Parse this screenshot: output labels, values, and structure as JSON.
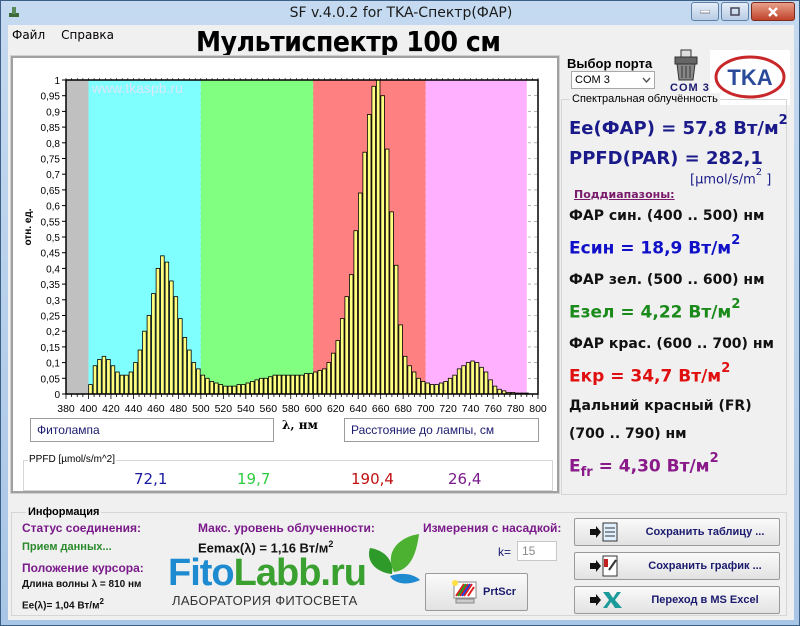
{
  "window": {
    "title": "SF v.4.0.2 for TKA-Спектр(ФАР)",
    "controls": {
      "minimize": "minimize",
      "maximize": "maximize",
      "close": "close"
    }
  },
  "menu": {
    "items": [
      {
        "label": "Файл"
      },
      {
        "label": "Справка"
      }
    ]
  },
  "header": {
    "title": "Мультиспектр 100 см"
  },
  "port": {
    "label": "Выбор порта",
    "selected": "COM 3",
    "status": "COM  3"
  },
  "chart": {
    "watermark": "www.tkaspb.ru",
    "ylabel": "отн. ед.",
    "xlabel": "λ, нм",
    "lamp_field": "Фитолампа",
    "distance_field": "Расстояние до лампы,  см",
    "ppfd_group_label": "PPFD [µmol/s/m^2]",
    "ppfd_values": [
      {
        "value": "72,1",
        "color": "#1a1aa0"
      },
      {
        "value": "19,7",
        "color": "#2ecc40"
      },
      {
        "value": "190,4",
        "color": "#c01010"
      },
      {
        "value": "26,4",
        "color": "#7a1a8a"
      }
    ]
  },
  "chart_data": {
    "type": "bar",
    "title": "Мультиспектр 100 см",
    "xlabel": "λ, нм",
    "ylabel": "отн. ед.",
    "xlim": [
      380,
      800
    ],
    "ylim": [
      0,
      1
    ],
    "x_ticks": [
      380,
      400,
      420,
      440,
      460,
      480,
      500,
      520,
      540,
      560,
      580,
      600,
      620,
      640,
      660,
      680,
      700,
      720,
      740,
      760,
      780,
      800
    ],
    "y_ticks": [
      "0",
      "0,05",
      "0,1",
      "0,15",
      "0,2",
      "0,25",
      "0,3",
      "0,35",
      "0,4",
      "0,45",
      "0,5",
      "0,55",
      "0,6",
      "0,65",
      "0,7",
      "0,75",
      "0,8",
      "0,85",
      "0,9",
      "0,95",
      "1"
    ],
    "bands": [
      {
        "name": "pre",
        "from": 380,
        "to": 400,
        "color": "#c0c0c0"
      },
      {
        "name": "blue",
        "from": 400,
        "to": 500,
        "color": "#80ffff"
      },
      {
        "name": "green",
        "from": 500,
        "to": 600,
        "color": "#80ff80"
      },
      {
        "name": "red",
        "from": 600,
        "to": 700,
        "color": "#ff8080"
      },
      {
        "name": "far-red",
        "from": 700,
        "to": 790,
        "color": "#ffb0ff"
      }
    ],
    "bar_color": "#ffff80",
    "x": [
      400,
      404,
      408,
      412,
      416,
      420,
      424,
      428,
      432,
      436,
      440,
      444,
      448,
      452,
      456,
      460,
      464,
      468,
      472,
      476,
      480,
      484,
      488,
      492,
      496,
      500,
      504,
      508,
      512,
      516,
      520,
      524,
      528,
      532,
      536,
      540,
      544,
      548,
      552,
      556,
      560,
      564,
      568,
      572,
      576,
      580,
      584,
      588,
      592,
      596,
      600,
      604,
      608,
      612,
      616,
      620,
      624,
      628,
      632,
      636,
      640,
      644,
      648,
      652,
      656,
      660,
      664,
      668,
      672,
      676,
      680,
      684,
      688,
      692,
      696,
      700,
      704,
      708,
      712,
      716,
      720,
      724,
      728,
      732,
      736,
      740,
      744,
      748,
      752,
      756,
      760,
      764,
      768,
      772,
      776,
      780,
      784,
      788
    ],
    "values": [
      0.03,
      0.09,
      0.11,
      0.12,
      0.11,
      0.09,
      0.07,
      0.06,
      0.06,
      0.07,
      0.1,
      0.14,
      0.2,
      0.25,
      0.32,
      0.4,
      0.44,
      0.42,
      0.36,
      0.31,
      0.24,
      0.18,
      0.14,
      0.1,
      0.08,
      0.06,
      0.05,
      0.04,
      0.035,
      0.03,
      0.025,
      0.025,
      0.025,
      0.03,
      0.03,
      0.035,
      0.04,
      0.045,
      0.05,
      0.05,
      0.055,
      0.06,
      0.06,
      0.06,
      0.06,
      0.06,
      0.06,
      0.06,
      0.065,
      0.065,
      0.07,
      0.075,
      0.08,
      0.1,
      0.13,
      0.17,
      0.24,
      0.31,
      0.38,
      0.52,
      0.64,
      0.77,
      0.89,
      0.98,
      1.0,
      0.95,
      0.78,
      0.58,
      0.41,
      0.22,
      0.12,
      0.09,
      0.07,
      0.05,
      0.04,
      0.035,
      0.03,
      0.03,
      0.035,
      0.04,
      0.05,
      0.06,
      0.08,
      0.09,
      0.1,
      0.105,
      0.1,
      0.085,
      0.07,
      0.045,
      0.025,
      0.015,
      0.01,
      0.005,
      0.005,
      0.003,
      0.003,
      0.003
    ]
  },
  "irradiance": {
    "legend": "Спектральная облучённость",
    "ee_par": "Ee(ФАР) = 57,8 Вт/м",
    "ppfd_par": "PPFD(PAR) = 282,1",
    "ppfd_unit": "[µmol/s/m",
    "ppfd_unit_close": "]",
    "subranges_label": "Поддиапазоны:",
    "blue_range": "ФАР син. (400 .. 500) нм",
    "blue_value": "Eсин = 18,9 Вт/м",
    "green_range": "ФАР зел. (500 .. 600) нм",
    "green_value": "Eзел = 4,22 Вт/м",
    "red_range": "ФАР крас. (600 .. 700) нм",
    "red_value": "Eкр = 34,7 Вт/м",
    "fr_range_1": "Дальний красный (FR)",
    "fr_range_2": "(700 .. 790) нм",
    "fr_value_prefix": "E",
    "fr_value_sub": "fr",
    "fr_value": " = 4,30 Вт/м",
    "superscript": "2",
    "colors": {
      "par": "#1a1a8a",
      "blue": "#1010c8",
      "green": "#1a8a1a",
      "red": "#e01010",
      "fr": "#8a1a8a"
    }
  },
  "info": {
    "legend": "Информация",
    "connection_label": "Статус соединения:",
    "connection_status": "Прием данных...",
    "cursor_label": "Положение курсора:",
    "wavelength": "Длина волны  λ  = 810 нм",
    "ee_lambda": "Ee(λ)= 1,04 Вт/м",
    "max_label": "Макс. уровень облученности:",
    "max_value": "Eemax(λ) = 1,16 Вт/м",
    "nozzle_label": "Измерения с насадкой:",
    "k_label": "k=",
    "k_value": "15"
  },
  "brand": {
    "name_blue": "Fito",
    "name_green": "Labb.ru",
    "tagline": "ЛАБОРАТОРИЯ ФИТОСВЕТА"
  },
  "buttons": {
    "prtscr": "PrtScr",
    "save_table": "Сохранить таблицу ...",
    "save_chart": "Сохранить график ...",
    "excel": "Переход в MS Excel"
  }
}
